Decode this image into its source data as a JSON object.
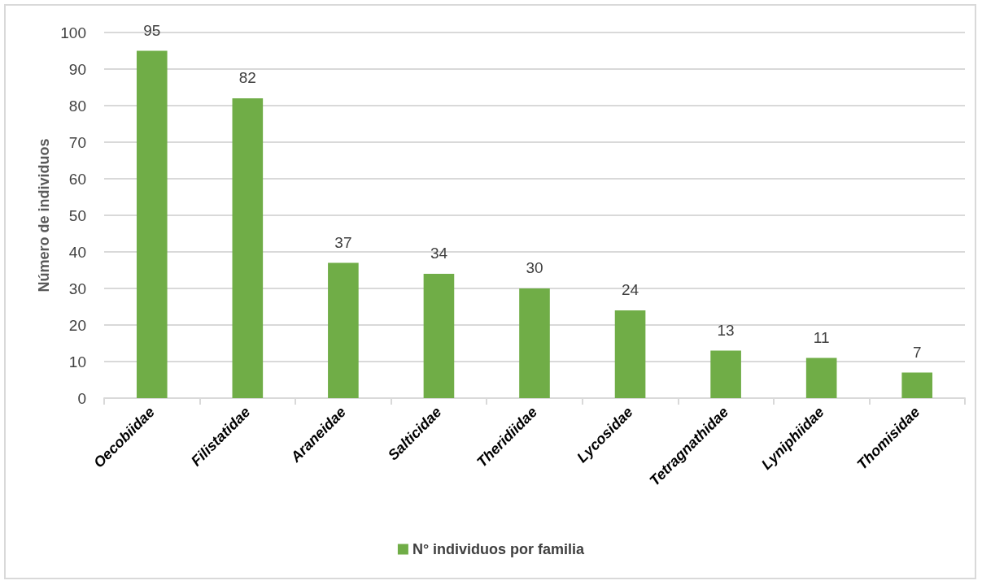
{
  "chart_data": {
    "type": "bar",
    "ylabel": "Número de individuos",
    "categories": [
      "Oecobiidae",
      "Filistatidae",
      "Araneidae",
      "Salticidae",
      "Theridiidae",
      "Lycosidae",
      "Tetragnathidae",
      "Lyniphiidae",
      "Thomisidae"
    ],
    "series": [
      {
        "name": "N° individuos por familia",
        "color": "#70ad47",
        "values": [
          95,
          82,
          37,
          34,
          30,
          24,
          13,
          11,
          7
        ]
      }
    ],
    "ylim": [
      0,
      100
    ],
    "yticks": [
      0,
      10,
      20,
      30,
      40,
      50,
      60,
      70,
      80,
      90,
      100
    ],
    "grid": "y",
    "legend": "bottom",
    "data_labels": true
  }
}
